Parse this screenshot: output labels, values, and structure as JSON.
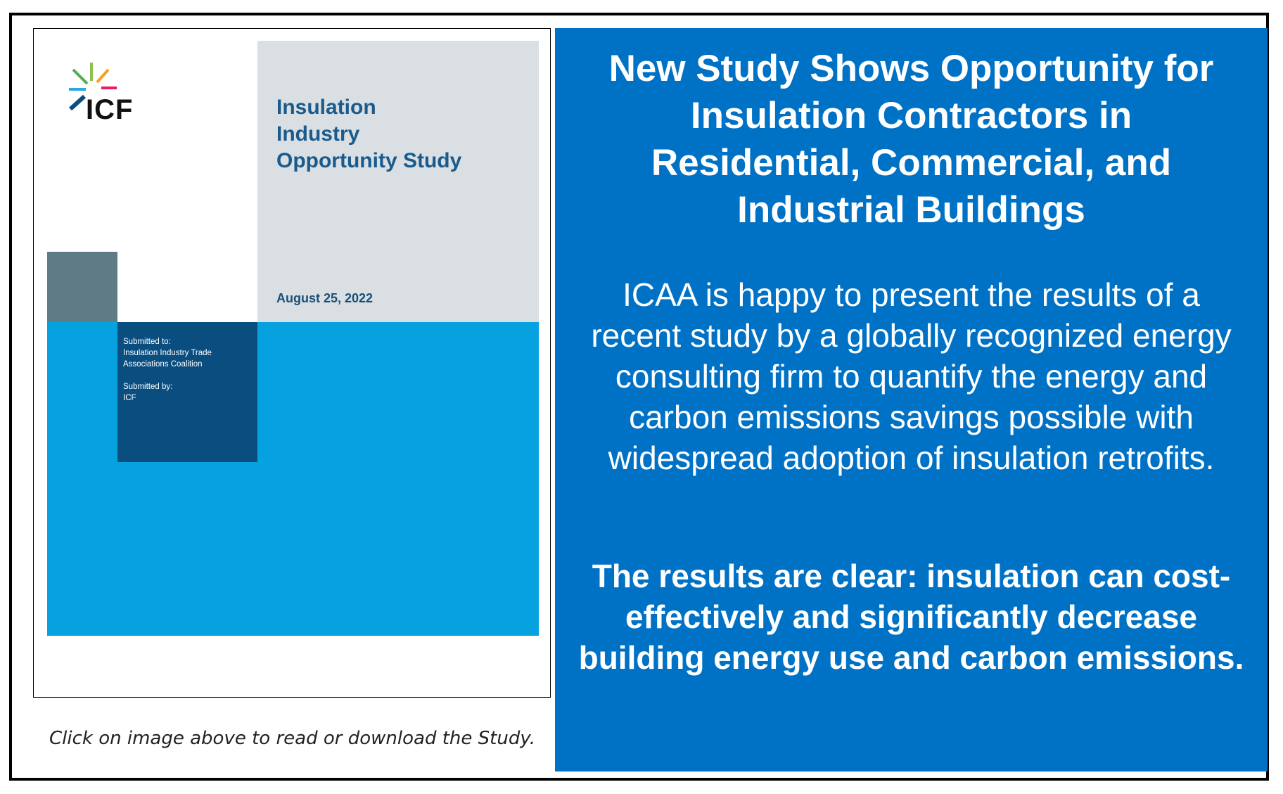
{
  "cover": {
    "logo_text": "ICF",
    "title_lines": [
      "Insulation",
      "Industry",
      "Opportunity Study"
    ],
    "date": "August 25, 2022",
    "submitted_to_label": "Submitted to:",
    "submitted_to_lines": [
      "Insulation Industry Trade",
      "Associations Coalition"
    ],
    "submitted_by_label": "Submitted by:",
    "submitted_by": "ICF"
  },
  "caption": "Click on image above to read or download the Study.",
  "panel": {
    "headline": "New Study Shows Opportunity for Insulation Contractors in Residential, Commercial, and Industrial Buildings",
    "body": "ICAA is happy to present the results of a recent study by a globally recognized energy consulting firm to quantify the energy and carbon emissions savings possible with widespread adoption of insulation retrofits.",
    "conclusion": "The results are clear: insulation can cost-effectively and significantly decrease building energy use and carbon emissions."
  },
  "colors": {
    "panel_blue": "#0072c6",
    "cover_light_blue": "#05a2df",
    "cover_navy": "#0a4e80",
    "cover_slate": "#5f7b86",
    "cover_grey": "#d9dfe2",
    "title_blue": "#1a5a8c"
  }
}
